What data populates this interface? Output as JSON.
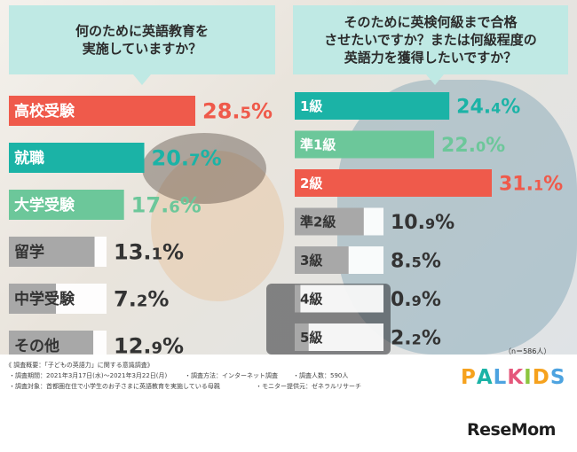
{
  "left_question": "何のために英語教育を\n実施していますか？",
  "right_question": "そのために英検何級まで合格\nさせたいですか？または何級程度の\n英語力を獲得したいですか？",
  "sample_note": "（n＝586人）",
  "survey_notes": {
    "line1": "《 調査概要：「子どもの英語力」に関する意識調査》",
    "line2_a": "・調査期間：2021年3月17日(水)～2021年3月22日(月)",
    "line2_b": "・調査方法：インターネット調査",
    "line2_c": "・調査人数：590人",
    "line3_a": "・調査対象：首都圏在住で小学生のお子さまに英語教育を実施している母親",
    "line3_b": "・モニター提供元：ゼネラルリサーチ"
  },
  "palkids_logo": [
    "P",
    "A",
    "L",
    "K",
    "I",
    "D",
    "S"
  ],
  "resemom_logo": "ReseMom",
  "colors": {
    "red": "#ef5a4b",
    "teal": "#1bb3a6",
    "green": "#6cc79a",
    "gray": "#a8a8a8",
    "label_bg": "#ffffff"
  },
  "chart_data": [
    {
      "type": "bar",
      "orientation": "horizontal",
      "title": "何のために英語教育を実施していますか？",
      "categories": [
        "高校受験",
        "就職",
        "大学受験",
        "留学",
        "中学受験",
        "その他"
      ],
      "values": [
        28.5,
        20.7,
        17.6,
        13.1,
        7.2,
        12.9
      ],
      "value_labels": [
        {
          "int": "28.",
          "dec": "5",
          "unit": "%"
        },
        {
          "int": "20.",
          "dec": "7",
          "unit": "%"
        },
        {
          "int": "17.",
          "dec": "6",
          "unit": "%"
        },
        {
          "int": "13.",
          "dec": "1",
          "unit": "%"
        },
        {
          "int": "7.",
          "dec": "2",
          "unit": "%"
        },
        {
          "int": "12.",
          "dec": "9",
          "unit": "%"
        }
      ],
      "bar_colors": [
        "red",
        "teal",
        "green",
        "gray",
        "gray",
        "gray"
      ],
      "label_colors": [
        "red",
        "teal",
        "green",
        "#333333",
        "#333333",
        "#333333"
      ],
      "max": 28.5
    },
    {
      "type": "bar",
      "orientation": "horizontal",
      "title": "そのために英検何級まで合格させたいですか？または何級程度の英語力を獲得したいですか？",
      "categories": [
        "1級",
        "準1級",
        "2級",
        "準2級",
        "3級",
        "4級",
        "5級"
      ],
      "values": [
        24.4,
        22.0,
        31.1,
        10.9,
        8.5,
        0.9,
        2.2
      ],
      "value_labels": [
        {
          "int": "24.",
          "dec": "4",
          "unit": "%"
        },
        {
          "int": "22.",
          "dec": "0",
          "unit": "%"
        },
        {
          "int": "31.",
          "dec": "1",
          "unit": "%"
        },
        {
          "int": "10.",
          "dec": "9",
          "unit": "%"
        },
        {
          "int": "8.",
          "dec": "5",
          "unit": "%"
        },
        {
          "int": "0.",
          "dec": "9",
          "unit": "%"
        },
        {
          "int": "2.",
          "dec": "2",
          "unit": "%"
        }
      ],
      "bar_colors": [
        "teal",
        "green",
        "red",
        "gray",
        "gray",
        "gray",
        "gray"
      ],
      "label_colors": [
        "teal",
        "green",
        "red",
        "#333333",
        "#333333",
        "#333333",
        "#333333"
      ],
      "max": 31.1
    }
  ]
}
